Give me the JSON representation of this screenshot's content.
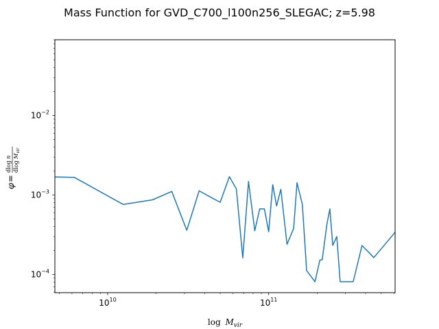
{
  "chart_data": {
    "type": "line",
    "title": "Mass Function for GVD_C700_l100n256_SLEGAC; z=5.98",
    "xlabel": "log M_vir",
    "ylabel": "φ = dlog n / dlog M_vir",
    "x_scale": "log",
    "y_scale": "log",
    "xlim": [
      4700000000.0,
      610000000000.0
    ],
    "ylim": [
      5.9e-05,
      0.09
    ],
    "grid": false,
    "x_major_ticks": [
      10000000000.0,
      100000000000.0
    ],
    "y_major_ticks": [
      0.0001,
      0.001,
      0.01
    ],
    "series": [
      {
        "color": "#1f77b4",
        "x": [
          4700000000.0,
          6200000000.0,
          12500000000.0,
          19000000000.0,
          25000000000.0,
          31000000000.0,
          37000000000.0,
          44000000000.0,
          50000000000.0,
          57000000000.0,
          63000000000.0,
          69000000000.0,
          75000000000.0,
          82000000000.0,
          88000000000.0,
          94000000000.0,
          100000000000.0,
          106000000000.0,
          112000000000.0,
          119000000000.0,
          130000000000.0,
          143000000000.0,
          150000000000.0,
          162000000000.0,
          172000000000.0,
          194000000000.0,
          208000000000.0,
          215000000000.0,
          230000000000.0,
          240000000000.0,
          250000000000.0,
          265000000000.0,
          278000000000.0,
          335000000000.0,
          380000000000.0,
          450000000000.0,
          610000000000.0
        ],
        "y": [
          0.00169,
          0.00167,
          0.00076,
          0.00087,
          0.00111,
          0.00036,
          0.00113,
          0.00093,
          0.00081,
          0.0017,
          0.00119,
          0.000162,
          0.00148,
          0.000355,
          0.00067,
          0.00067,
          0.000345,
          0.00135,
          0.00073,
          0.00118,
          0.00024,
          0.00038,
          0.00143,
          0.00076,
          0.000112,
          8.1e-05,
          0.000152,
          0.000153,
          0.00043,
          0.00067,
          0.000232,
          0.0003,
          8.1e-05,
          8.1e-05,
          0.000232,
          0.000163,
          0.00034
        ]
      }
    ]
  }
}
